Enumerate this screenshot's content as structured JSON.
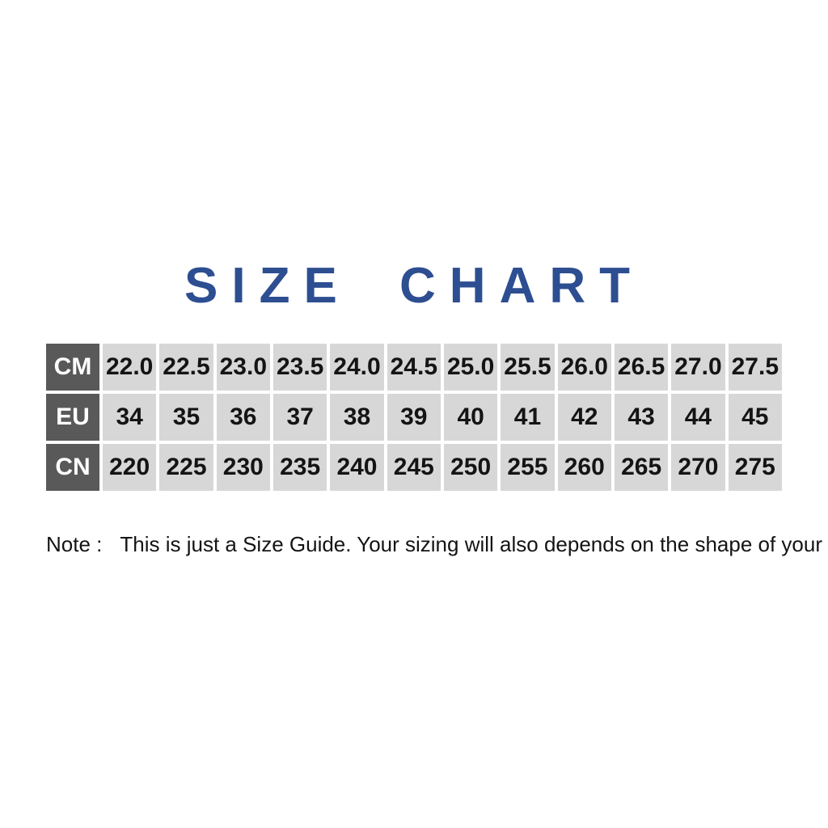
{
  "title": {
    "text": "SIZE CHART"
  },
  "chart_data": {
    "type": "table",
    "title": "SIZE CHART",
    "row_headers": [
      "CM",
      "EU",
      "CN"
    ],
    "rows": [
      {
        "header": "CM",
        "values": [
          "22.0",
          "22.5",
          "23.0",
          "23.5",
          "24.0",
          "24.5",
          "25.0",
          "25.5",
          "26.0",
          "26.5",
          "27.0",
          "27.5"
        ]
      },
      {
        "header": "EU",
        "values": [
          "34",
          "35",
          "36",
          "37",
          "38",
          "39",
          "40",
          "41",
          "42",
          "43",
          "44",
          "45"
        ]
      },
      {
        "header": "CN",
        "values": [
          "220",
          "225",
          "230",
          "235",
          "240",
          "245",
          "250",
          "255",
          "260",
          "265",
          "270",
          "275"
        ]
      }
    ],
    "note": "Note :   This is just a Size Guide. Your sizing will also depends on the shape of your foot.",
    "layout_hints": {
      "grid": "white gaps between cells",
      "header_column_position": "left"
    }
  },
  "note": {
    "label": "Note :",
    "text": "This is just a Size Guide. Your sizing will also depends on the shape of your foot."
  },
  "colors": {
    "page_background": "#ffffff",
    "title_blue": "#2d4e91",
    "header_gray": "#595959",
    "cell_gray": "#d7d7d7",
    "grid_white": "#ffffff",
    "text_black": "#141414"
  }
}
